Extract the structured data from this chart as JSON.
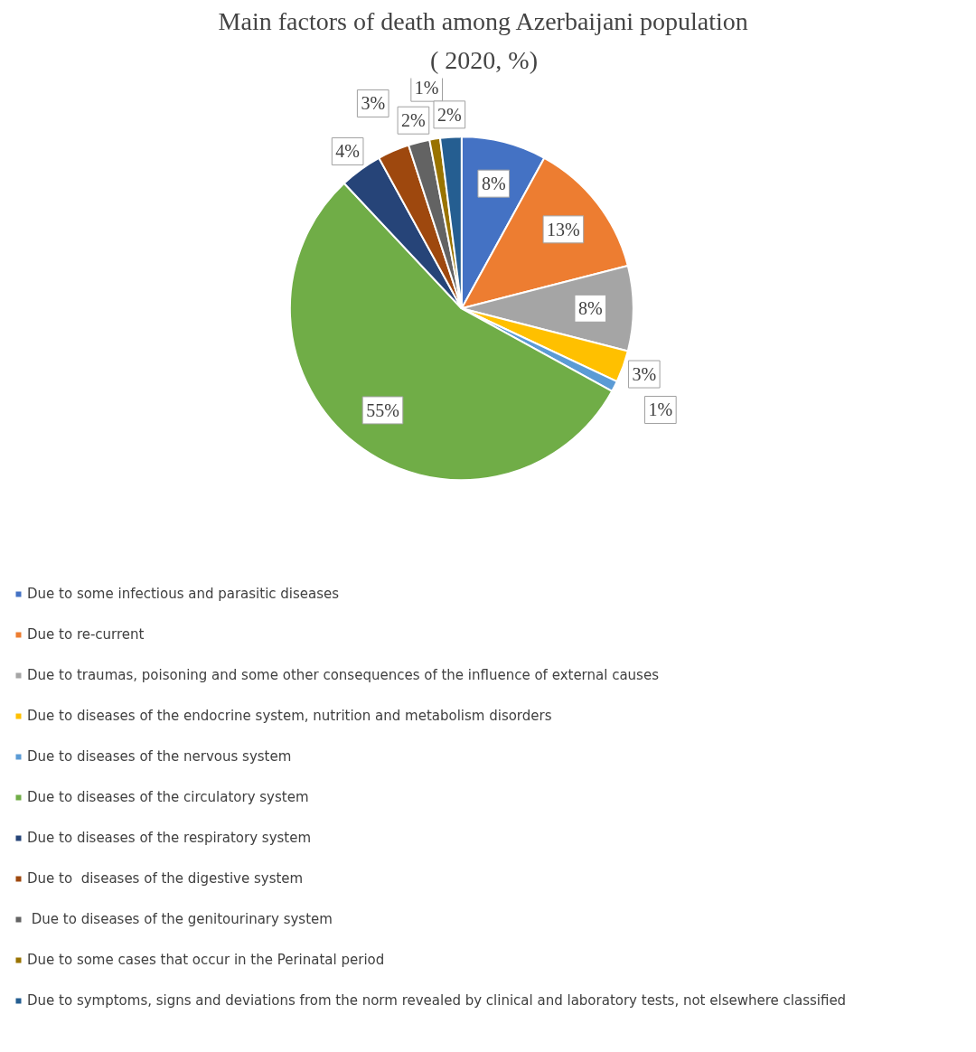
{
  "chart_data": {
    "type": "pie",
    "title": "Main factors of death among Azerbaijani population",
    "subtitle": "( 2020, %)",
    "categories": [
      "Due to some infectious and parasitic diseases",
      "Due to re-current",
      "Due to traumas, poisoning and some other consequences of the influence of external causes",
      "Due to diseases of the endocrine system, nutrition and metabolism disorders",
      "Due to diseases of the nervous system",
      "Due to diseases of the circulatory system",
      "Due to diseases of the respiratory system",
      "Due to  diseases of the digestive system",
      " Due to diseases of the genitourinary system",
      "Due to some cases that occur in the Perinatal period",
      "Due to symptoms, signs and deviations from the norm revealed by clinical and laboratory tests, not elsewhere classified"
    ],
    "values": [
      8,
      13,
      8,
      3,
      1,
      55,
      4,
      3,
      2,
      1,
      2
    ],
    "value_labels": [
      "8%",
      "13%",
      "8%",
      "3%",
      "1%",
      "55%",
      "4%",
      "3%",
      "2%",
      "1%",
      "2%"
    ],
    "colors": [
      "#4472c4",
      "#ed7d31",
      "#a5a5a5",
      "#ffc000",
      "#5b9bd5",
      "#70ad47",
      "#264478",
      "#9e480e",
      "#636363",
      "#997300",
      "#255e91"
    ],
    "legend": "bottom"
  }
}
